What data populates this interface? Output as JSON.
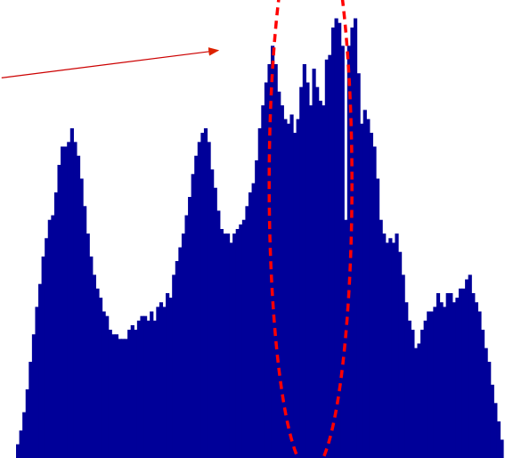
{
  "chart_data": {
    "type": "bar",
    "grid": false,
    "legend": "none",
    "colors": {
      "bars": "#000099",
      "annotation": "#cc0000",
      "highlight_ellipse": "#ff0000",
      "background": "#ffffff"
    },
    "ylim": [
      0,
      100
    ],
    "values": [
      3,
      6,
      10,
      15,
      21,
      27,
      33,
      38,
      44,
      48,
      52,
      53,
      58,
      64,
      68,
      68,
      69,
      72,
      69,
      66,
      61,
      55,
      49,
      44,
      40,
      37,
      35,
      32,
      31,
      28,
      27,
      27,
      26,
      26,
      26,
      28,
      29,
      28,
      30,
      31,
      31,
      30,
      32,
      30,
      33,
      34,
      33,
      36,
      35,
      40,
      43,
      46,
      49,
      53,
      57,
      62,
      66,
      69,
      71,
      72,
      69,
      63,
      59,
      54,
      50,
      49,
      49,
      47,
      49,
      50,
      51,
      52,
      55,
      58,
      60,
      65,
      72,
      77,
      82,
      86,
      90,
      86,
      80,
      77,
      74,
      73,
      75,
      71,
      74,
      81,
      86,
      82,
      77,
      85,
      81,
      78,
      77,
      87,
      88,
      94,
      96,
      95,
      90,
      52,
      90,
      94,
      96,
      84,
      73,
      76,
      74,
      71,
      68,
      61,
      52,
      49,
      47,
      48,
      47,
      49,
      45,
      40,
      34,
      30,
      28,
      24,
      25,
      28,
      30,
      32,
      32,
      33,
      36,
      34,
      33,
      36,
      36,
      34,
      35,
      37,
      37,
      39,
      40,
      36,
      34,
      32,
      28,
      24,
      21,
      16,
      12,
      8,
      4
    ],
    "annotations": [
      {
        "type": "arrow",
        "from": [
          0,
          83
        ],
        "to": [
          63,
          89
        ]
      },
      {
        "type": "ellipse",
        "center": [
          92,
          60
        ],
        "rx": 13,
        "ry": 63
      }
    ]
  }
}
